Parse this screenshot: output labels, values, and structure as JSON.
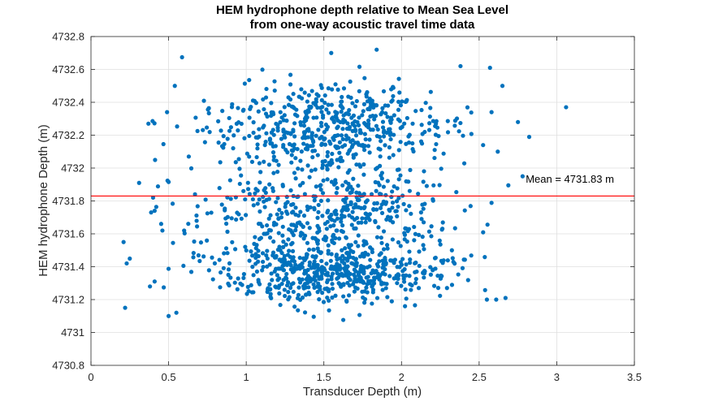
{
  "chart_data": {
    "type": "scatter",
    "title": [
      "HEM hydrophone depth relative to Mean Sea Level",
      "from one-way acoustic travel time data"
    ],
    "xlabel": "Transducer Depth (m)",
    "ylabel": "HEM hydrophone Depth (m)",
    "xlim": [
      0,
      3.5
    ],
    "ylim": [
      4730.8,
      4732.8
    ],
    "x_ticks": [
      0,
      0.5,
      1,
      1.5,
      2,
      2.5,
      3,
      3.5
    ],
    "x_tick_labels": [
      "0",
      "0.5",
      "1",
      "1.5",
      "2",
      "2.5",
      "3",
      "3.5"
    ],
    "y_ticks": [
      4730.8,
      4731,
      4731.2,
      4731.4,
      4731.6,
      4731.8,
      4732,
      4732.2,
      4732.4,
      4732.6,
      4732.8
    ],
    "y_tick_labels": [
      "4730.8",
      "4731",
      "4731.2",
      "4731.4",
      "4731.6",
      "4731.8",
      "4732",
      "4732.2",
      "4732.4",
      "4732.6",
      "4732.8"
    ],
    "grid": true,
    "marker_color": "#0072BD",
    "mean_line": {
      "y": 4731.83,
      "color": "#FF0000",
      "label": "Mean = 4731.83 m",
      "label_x": 2.8,
      "label_y": 4731.91
    },
    "clusters": [
      {
        "cx": 1.55,
        "cy": 4731.37,
        "sx": 0.36,
        "sy": 0.1,
        "n": 560
      },
      {
        "cx": 1.5,
        "cy": 4731.75,
        "sx": 0.42,
        "sy": 0.14,
        "n": 420
      },
      {
        "cx": 1.55,
        "cy": 4732.25,
        "sx": 0.4,
        "sy": 0.14,
        "n": 520
      }
    ],
    "outliers": [
      [
        3.06,
        4732.37
      ],
      [
        0.31,
        4731.91
      ],
      [
        0.21,
        4731.55
      ],
      [
        0.23,
        4731.42
      ],
      [
        0.22,
        4731.15
      ],
      [
        0.37,
        4732.27
      ],
      [
        0.54,
        4732.5
      ],
      [
        0.49,
        4732.34
      ],
      [
        0.4,
        4731.82
      ],
      [
        0.41,
        4731.74
      ],
      [
        0.38,
        4731.28
      ],
      [
        0.41,
        4731.31
      ],
      [
        0.46,
        4731.62
      ],
      [
        0.5,
        4731.1
      ],
      [
        0.55,
        4731.12
      ],
      [
        2.57,
        4732.61
      ],
      [
        2.78,
        4731.95
      ],
      [
        2.75,
        4732.28
      ],
      [
        2.67,
        4731.21
      ],
      [
        2.65,
        4732.5
      ],
      [
        2.38,
        4732.62
      ],
      [
        2.61,
        4731.2
      ],
      [
        2.58,
        4732.34
      ],
      [
        2.62,
        4732.1
      ],
      [
        2.55,
        4731.2
      ],
      [
        0.63,
        4732.07
      ],
      [
        0.67,
        4731.84
      ],
      [
        0.6,
        4731.62
      ],
      [
        1.84,
        4732.72
      ],
      [
        1.67,
        4731.32
      ]
    ]
  }
}
